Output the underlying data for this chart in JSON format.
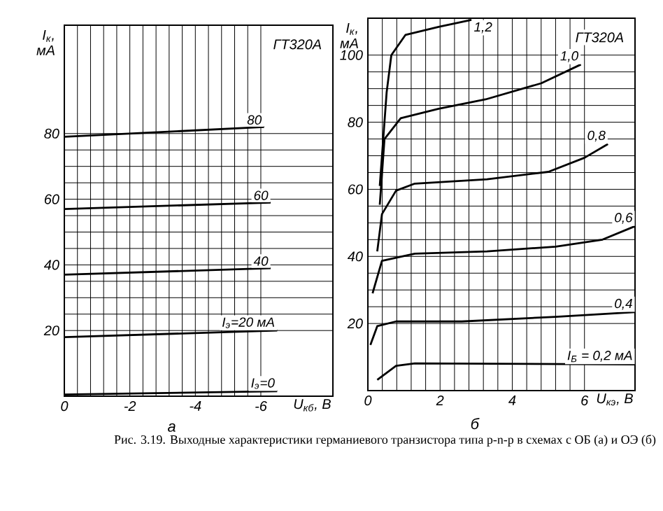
{
  "chart_data": [
    {
      "type": "line",
      "xlabel": "U$_{кб}$, В",
      "ylabel": "I$_{к}$, мА",
      "subtitle": "а",
      "grid": true,
      "xlim": [
        0,
        -8.2
      ],
      "ylim": [
        0,
        113
      ],
      "xticks": [
        0,
        -2,
        -4,
        -6
      ],
      "yticks": [
        20,
        40,
        60,
        80
      ],
      "annotations": [
        "ГТ320А"
      ],
      "series": [
        {
          "name": "I$_{э}$=0",
          "color": "#000000",
          "x": [
            0,
            -6.5
          ],
          "values": [
            0.5,
            1.5
          ]
        },
        {
          "name": "I$_{э}$=20 мА",
          "color": "#000000",
          "x": [
            0,
            -6.5
          ],
          "values": [
            18,
            20
          ]
        },
        {
          "name": "40",
          "color": "#000000",
          "x": [
            0,
            -6.3
          ],
          "values": [
            37,
            39
          ]
        },
        {
          "name": "60",
          "color": "#000000",
          "x": [
            0,
            -6.3
          ],
          "values": [
            57,
            59
          ]
        },
        {
          "name": "80",
          "color": "#000000",
          "x": [
            0,
            -6.1
          ],
          "values": [
            79,
            82
          ]
        }
      ]
    },
    {
      "type": "line",
      "xlabel": "U$_{кэ}$, В",
      "ylabel": "I$_{к}$, мА",
      "subtitle": "б",
      "grid": true,
      "xlim": [
        0,
        7.4
      ],
      "ylim": [
        0,
        111
      ],
      "xticks": [
        0,
        2,
        4,
        6
      ],
      "yticks": [
        20,
        40,
        60,
        80,
        100
      ],
      "annotations": [
        "ГТ320А",
        "Рис. 3.19. Выходные характеристики германиевого транзистора типа p-n-p в схемах с ОБ (а) и ОЭ (б)"
      ],
      "series": [
        {
          "name": "I$_{Б}$ = 0,2 мА",
          "color": "#000000",
          "x": [
            0.26,
            0.78,
            1.3,
            7.4
          ],
          "values": [
            3.2,
            7.4,
            8.1,
            7.8
          ]
        },
        {
          "name": "0,4",
          "color": "#000000",
          "x": [
            0.07,
            0.26,
            0.78,
            2.6,
            5.2,
            7.4
          ],
          "values": [
            13.6,
            19.2,
            20.6,
            20.6,
            22,
            23.4
          ]
        },
        {
          "name": "0,6",
          "color": "#000000",
          "x": [
            0.13,
            0.39,
            1.3,
            3.3,
            5.2,
            6.5,
            7.4
          ],
          "values": [
            29,
            38.7,
            40.8,
            41.5,
            42.9,
            45,
            49
          ]
        },
        {
          "name": "0,8",
          "color": "#000000",
          "x": [
            0.26,
            0.39,
            0.78,
            1.3,
            3.3,
            5.0,
            6.0,
            6.65
          ],
          "values": [
            41.5,
            52.6,
            59.6,
            61.7,
            63,
            65.2,
            69.4,
            73.5
          ]
        },
        {
          "name": "1,0",
          "color": "#000000",
          "x": [
            0.33,
            0.46,
            0.91,
            1.96,
            3.26,
            4.8,
            5.9
          ],
          "values": [
            55.4,
            75,
            81.2,
            84,
            86.8,
            91.6,
            97.2
          ]
        },
        {
          "name": "1,2",
          "color": "#000000",
          "x": [
            0.33,
            0.52,
            0.65,
            1.04,
            1.96,
            2.87
          ],
          "values": [
            61,
            88.9,
            100,
            106,
            108.4,
            110.5
          ]
        }
      ]
    }
  ]
}
